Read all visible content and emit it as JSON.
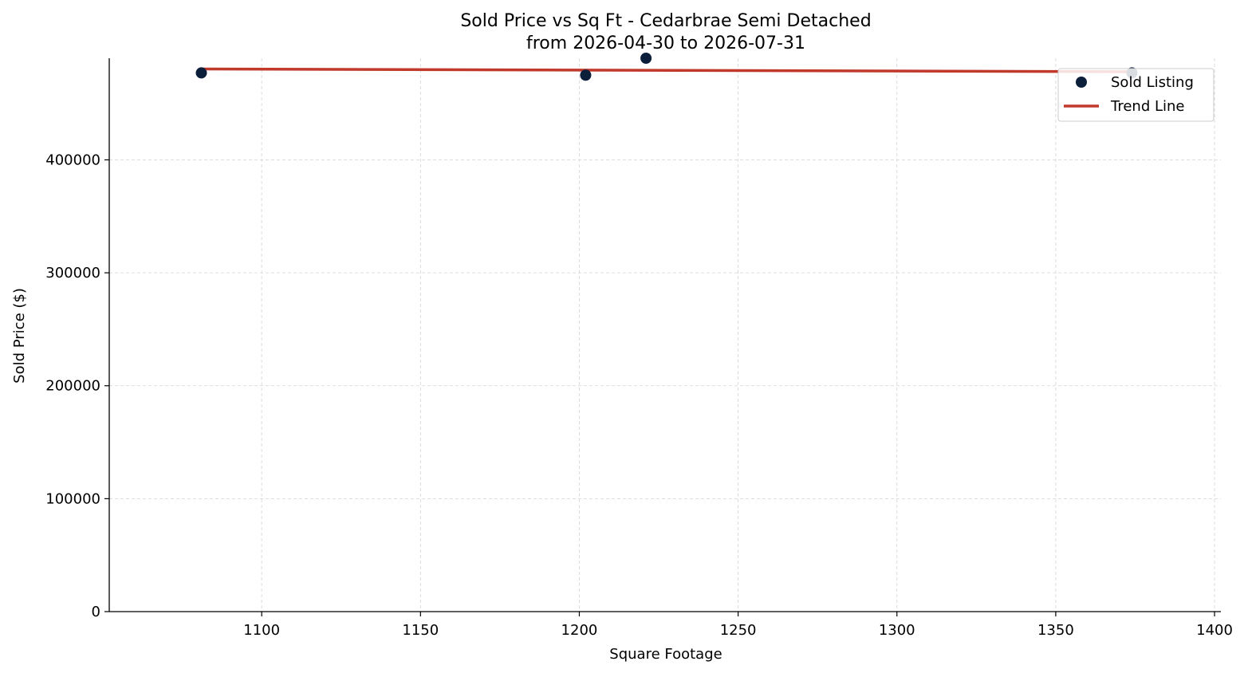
{
  "chart_data": {
    "type": "scatter",
    "title": "Sold Price vs Sq Ft - Cedarbrae Semi Detached",
    "subtitle": "from 2026-04-30 to 2026-07-31",
    "xlabel": "Square Footage",
    "ylabel": "Sold Price ($)",
    "xlim": [
      1052,
      1402
    ],
    "ylim": [
      0,
      490000
    ],
    "xticks": [
      1100,
      1150,
      1200,
      1250,
      1300,
      1350,
      1400
    ],
    "yticks": [
      0,
      100000,
      200000,
      300000,
      400000
    ],
    "grid": true,
    "legend_position": "top-right",
    "series": [
      {
        "name": "Sold Listing",
        "kind": "scatter",
        "color": "#0b1f3a",
        "points": [
          {
            "x": 1081,
            "y": 477000
          },
          {
            "x": 1202,
            "y": 475000
          },
          {
            "x": 1221,
            "y": 490000
          },
          {
            "x": 1374,
            "y": 477000
          }
        ]
      },
      {
        "name": "Trend Line",
        "kind": "line",
        "color": "#c0392b",
        "points": [
          {
            "x": 1081,
            "y": 480500
          },
          {
            "x": 1374,
            "y": 478000
          }
        ]
      }
    ]
  }
}
